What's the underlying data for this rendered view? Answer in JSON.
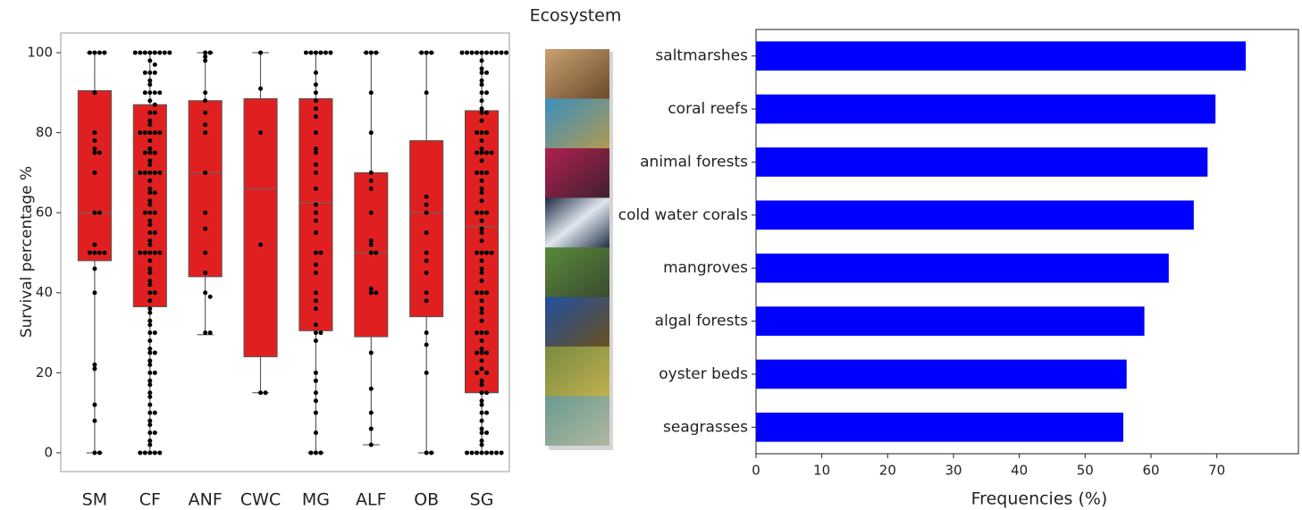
{
  "title": "Ecosystem",
  "chart_data": [
    {
      "type": "box",
      "y_label": "Survival percentage %",
      "color": "#e02020",
      "categories": [
        "SM",
        "CF",
        "ANF",
        "CWC",
        "MG",
        "ALF",
        "OB",
        "SG"
      ],
      "boxes": [
        {
          "whislo": 0,
          "q1": 48,
          "med": 60,
          "q3": 90.5,
          "whishi": 100,
          "points": [
            100,
            100,
            100,
            100,
            90,
            80,
            78,
            76,
            75,
            75,
            70,
            60,
            60,
            52,
            50,
            50,
            50,
            50,
            46,
            40,
            22,
            21,
            12,
            8,
            0,
            0
          ]
        },
        {
          "whislo": 0,
          "q1": 36.5,
          "med": 70,
          "q3": 87,
          "whishi": 100,
          "points": [
            100,
            100,
            100,
            100,
            100,
            100,
            100,
            100,
            98,
            97,
            95,
            95,
            95,
            93,
            92,
            90,
            90,
            90,
            90,
            88,
            87,
            85,
            85,
            83,
            82,
            80,
            80,
            80,
            80,
            80,
            78,
            76,
            75,
            75,
            75,
            73,
            72,
            70,
            70,
            70,
            70,
            70,
            68,
            66,
            65,
            65,
            63,
            62,
            60,
            60,
            60,
            58,
            57,
            55,
            55,
            53,
            52,
            50,
            50,
            50,
            50,
            50,
            48,
            46,
            45,
            43,
            42,
            40,
            40,
            38,
            36,
            35,
            33,
            32,
            30,
            30,
            28,
            26,
            25,
            25,
            23,
            22,
            20,
            20,
            18,
            17,
            15,
            14,
            12,
            10,
            10,
            8,
            7,
            5,
            5,
            3,
            2,
            0,
            0,
            0,
            0,
            0
          ]
        },
        {
          "whislo": 29.5,
          "q1": 44,
          "med": 70,
          "q3": 88,
          "whishi": 100,
          "points": [
            100,
            100,
            99,
            98,
            90,
            88,
            85,
            82,
            80,
            70,
            60,
            56,
            50,
            45,
            40,
            39,
            30,
            30
          ]
        },
        {
          "whislo": 15,
          "q1": 24,
          "med": 66,
          "q3": 88.5,
          "whishi": 100,
          "points": [
            100,
            91,
            80,
            52,
            15,
            15
          ]
        },
        {
          "whislo": 0,
          "q1": 30.5,
          "med": 62.5,
          "q3": 88.5,
          "whishi": 100,
          "points": [
            100,
            100,
            100,
            100,
            100,
            100,
            95,
            92,
            90,
            88,
            86,
            84,
            80,
            76,
            75,
            72,
            70,
            66,
            62,
            60,
            58,
            55,
            50,
            50,
            47,
            45,
            40,
            38,
            36,
            32,
            30,
            30,
            28,
            20,
            18,
            15,
            13,
            10,
            5,
            0,
            0,
            0
          ]
        },
        {
          "whislo": 2,
          "q1": 29,
          "med": 50,
          "q3": 70,
          "whishi": 100,
          "points": [
            100,
            100,
            100,
            90,
            80,
            70,
            68,
            66,
            60,
            53,
            52,
            50,
            50,
            41,
            40,
            40,
            25,
            16,
            10,
            6,
            2
          ]
        },
        {
          "whislo": 0,
          "q1": 34,
          "med": 60,
          "q3": 78,
          "whishi": 100,
          "points": [
            100,
            100,
            100,
            90,
            64,
            62,
            60,
            55,
            50,
            48,
            45,
            40,
            38,
            30,
            27,
            20,
            0,
            0
          ]
        },
        {
          "whislo": 0,
          "q1": 15,
          "med": 56.5,
          "q3": 85.5,
          "whishi": 100,
          "points": [
            100,
            100,
            100,
            100,
            100,
            100,
            100,
            100,
            100,
            100,
            98,
            96,
            95,
            95,
            93,
            92,
            90,
            90,
            88,
            86,
            85,
            85,
            83,
            80,
            80,
            80,
            78,
            76,
            75,
            75,
            75,
            75,
            73,
            70,
            70,
            70,
            68,
            66,
            65,
            63,
            60,
            60,
            60,
            58,
            56,
            55,
            53,
            50,
            50,
            50,
            50,
            48,
            46,
            45,
            43,
            40,
            40,
            40,
            38,
            36,
            35,
            33,
            30,
            30,
            30,
            28,
            26,
            25,
            25,
            25,
            23,
            21,
            20,
            20,
            18,
            17,
            15,
            15,
            13,
            12,
            10,
            10,
            8,
            6,
            5,
            5,
            3,
            2,
            0,
            0,
            0,
            0,
            0,
            0,
            0,
            0
          ]
        }
      ],
      "ylim": [
        -4.7,
        104.9
      ],
      "yticks": [
        0,
        20,
        40,
        60,
        80,
        100
      ]
    },
    {
      "type": "barh",
      "x_label": "Frequencies (%)",
      "color": "#0000ff",
      "categories": [
        "saltmarshes",
        "coral reefs",
        "animal forests",
        "cold water corals",
        "mangroves",
        "algal forests",
        "oyster beds",
        "seagrasses"
      ],
      "values": [
        74.4,
        69.8,
        68.6,
        66.5,
        62.7,
        59,
        56.3,
        55.8
      ],
      "xlim": [
        0,
        82.4
      ],
      "xticks": [
        0,
        10,
        20,
        30,
        40,
        50,
        60,
        70
      ]
    }
  ]
}
